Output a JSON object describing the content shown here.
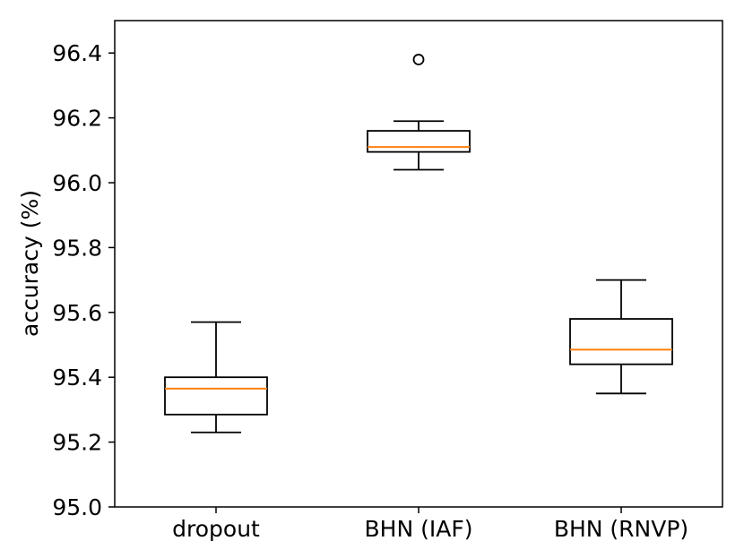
{
  "chart_data": {
    "type": "box",
    "title": "",
    "xlabel": "",
    "ylabel": "accuracy (%)",
    "ylim": [
      95.0,
      96.5
    ],
    "yticks": [
      95.0,
      95.2,
      95.4,
      95.6,
      95.8,
      96.0,
      96.2,
      96.4
    ],
    "ytick_labels": [
      "95.0",
      "95.2",
      "95.4",
      "95.6",
      "95.8",
      "96.0",
      "96.2",
      "96.4"
    ],
    "categories": [
      "dropout",
      "BHN (IAF)",
      "BHN (RNVP)"
    ],
    "boxes": [
      {
        "whisker_low": 95.23,
        "q1": 95.285,
        "median": 95.365,
        "q3": 95.4,
        "whisker_high": 95.57,
        "outliers": []
      },
      {
        "whisker_low": 96.04,
        "q1": 96.095,
        "median": 96.11,
        "q3": 96.16,
        "whisker_high": 96.19,
        "outliers": [
          96.38
        ]
      },
      {
        "whisker_low": 95.35,
        "q1": 95.44,
        "median": 95.485,
        "q3": 95.58,
        "whisker_high": 95.7,
        "outliers": []
      }
    ],
    "grid": false,
    "colors": {
      "box": "#000000",
      "median": "#ff7f0e",
      "outlier": "#000000"
    }
  }
}
